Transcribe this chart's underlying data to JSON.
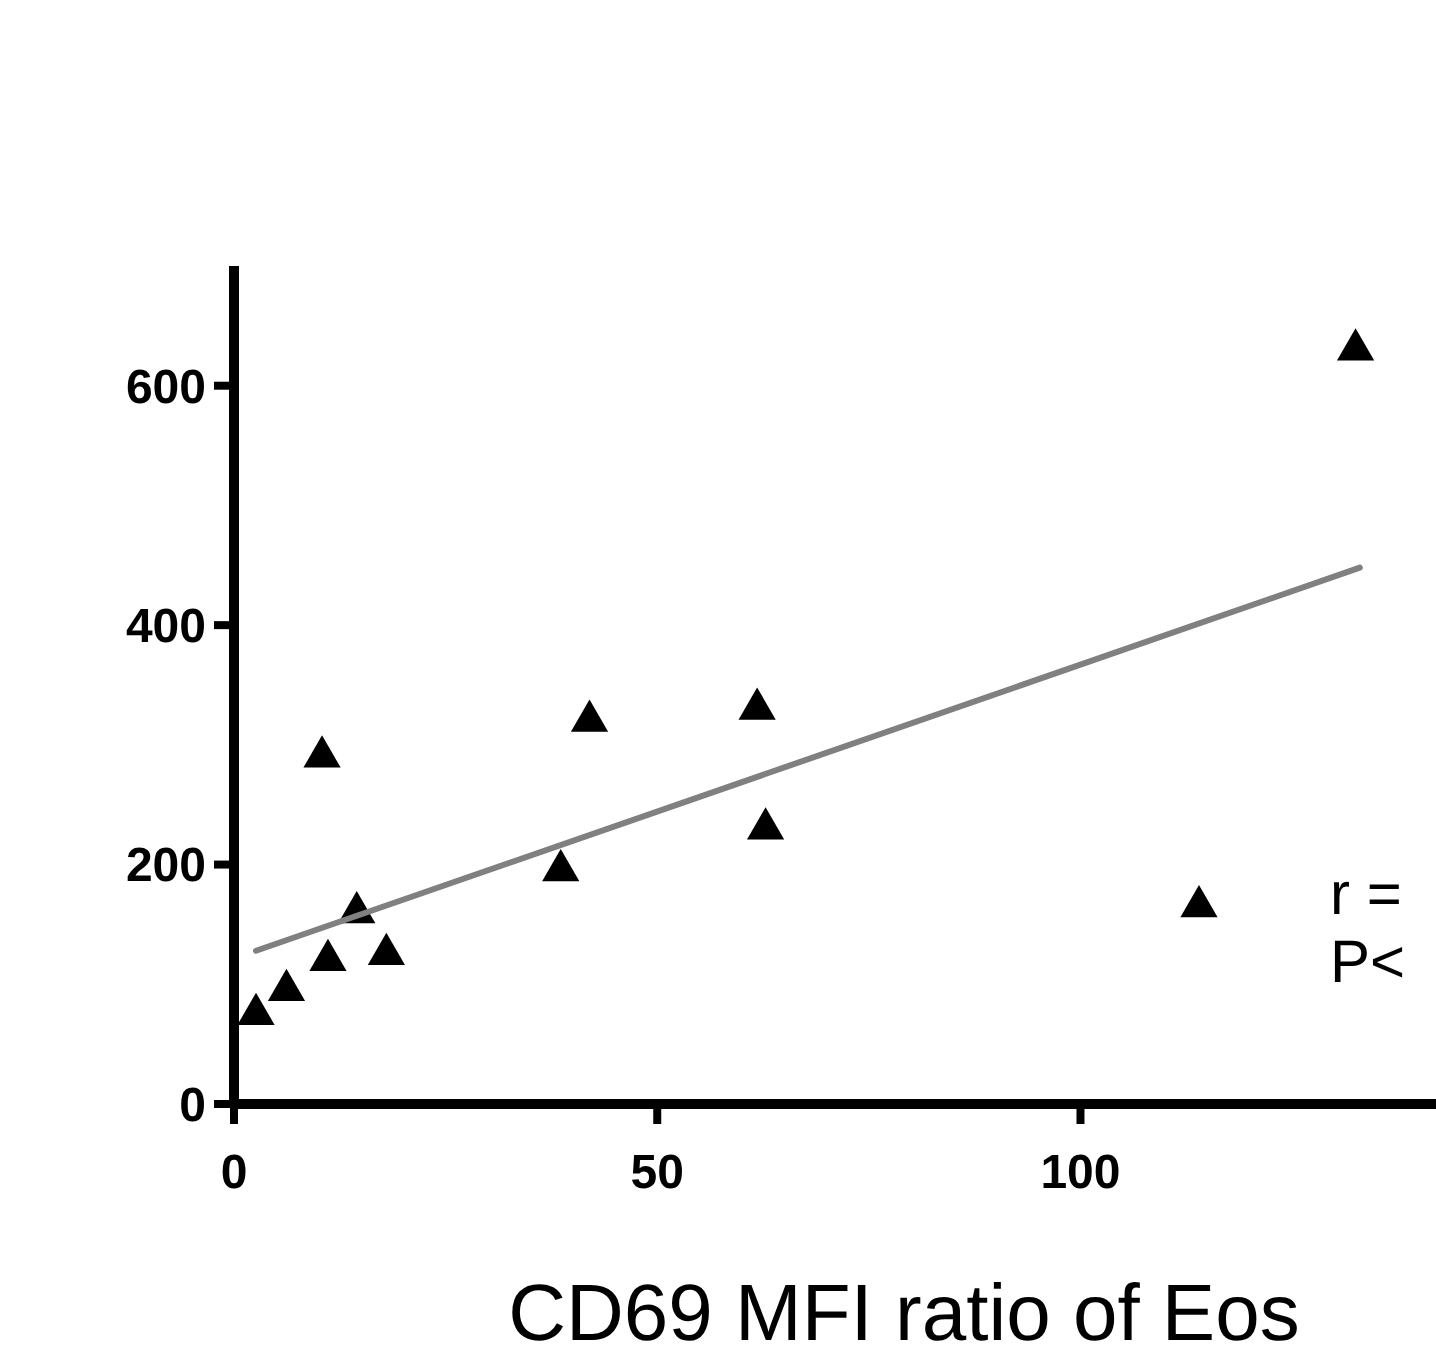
{
  "chart_data": {
    "type": "scatter",
    "xlabel": "CD69 MFI ratio of Eos",
    "xlim": [
      0,
      142
    ],
    "xticks": [
      0,
      50,
      100
    ],
    "ylim": [
      0,
      700
    ],
    "yticks": [
      0,
      200,
      400,
      600
    ],
    "grid": false,
    "series": [
      {
        "marker": "triangle",
        "color": "#000000",
        "x": [
          2.6,
          6.2,
          10.4,
          11.1,
          14.5,
          18,
          38.6,
          42,
          61.8,
          62.8,
          114,
          132.5
        ],
        "values": [
          75,
          95,
          290,
          120,
          160,
          125,
          195,
          320,
          330,
          230,
          165,
          630
        ]
      },
      {
        "type": "line",
        "color": "#808080",
        "x": [
          2.6,
          133
        ],
        "values": [
          128,
          448
        ]
      }
    ],
    "annotations": [
      "r =",
      "P<"
    ]
  }
}
